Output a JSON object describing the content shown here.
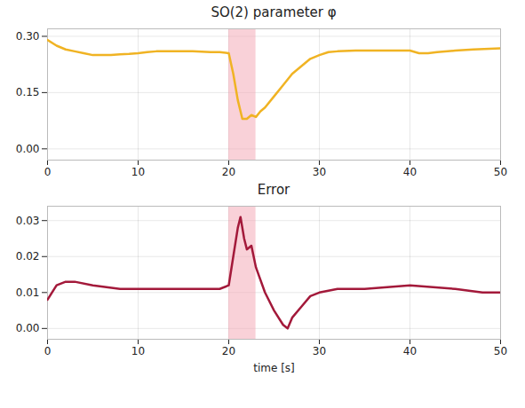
{
  "chart_data": [
    {
      "type": "line",
      "title": "SO(2) parameter φ",
      "x": [
        0,
        1,
        2,
        3,
        4,
        5,
        6,
        7,
        8,
        9,
        10,
        11,
        12,
        13,
        14,
        15,
        16,
        17,
        18,
        19,
        20,
        20.5,
        21,
        21.5,
        22,
        22.5,
        23,
        23.5,
        24,
        25,
        26,
        27,
        28,
        29,
        30,
        31,
        32,
        34,
        36,
        38,
        40,
        41,
        42,
        43,
        45,
        47,
        50
      ],
      "series": [
        {
          "color": "#f0b323",
          "values": [
            0.29,
            0.275,
            0.265,
            0.26,
            0.255,
            0.25,
            0.25,
            0.25,
            0.252,
            0.253,
            0.255,
            0.258,
            0.26,
            0.26,
            0.26,
            0.26,
            0.26,
            0.259,
            0.258,
            0.258,
            0.255,
            0.2,
            0.13,
            0.08,
            0.08,
            0.09,
            0.085,
            0.1,
            0.11,
            0.14,
            0.17,
            0.2,
            0.22,
            0.24,
            0.25,
            0.258,
            0.26,
            0.262,
            0.262,
            0.262,
            0.262,
            0.255,
            0.255,
            0.258,
            0.262,
            0.265,
            0.268
          ]
        }
      ],
      "xlim": [
        0,
        50
      ],
      "xticks": [
        0,
        10,
        20,
        30,
        40,
        50
      ],
      "ylim": [
        -0.03,
        0.32
      ],
      "yticks": [
        {
          "value": 0,
          "label": "0.00"
        },
        {
          "value": 0.15,
          "label": "0.15"
        },
        {
          "value": 0.3,
          "label": "0.30"
        }
      ],
      "grid": true,
      "highlight_span": [
        20,
        23
      ]
    },
    {
      "type": "line",
      "title": "Error",
      "xlabel": "time [s]",
      "x": [
        0,
        1,
        2,
        3,
        5,
        8,
        10,
        15,
        19,
        20,
        20.5,
        21,
        21.3,
        21.7,
        22,
        22.5,
        23,
        24,
        25,
        26,
        26.5,
        27,
        28,
        29,
        30,
        32,
        35,
        40,
        45,
        48,
        50
      ],
      "series": [
        {
          "color": "#a3193a",
          "values": [
            0.008,
            0.012,
            0.013,
            0.013,
            0.012,
            0.011,
            0.011,
            0.011,
            0.011,
            0.012,
            0.02,
            0.028,
            0.031,
            0.025,
            0.022,
            0.023,
            0.017,
            0.01,
            0.005,
            0.001,
            0.0,
            0.003,
            0.006,
            0.009,
            0.01,
            0.011,
            0.011,
            0.012,
            0.011,
            0.01,
            0.01
          ]
        }
      ],
      "xlim": [
        0,
        50
      ],
      "xticks": [
        0,
        10,
        20,
        30,
        40,
        50
      ],
      "ylim": [
        -0.003,
        0.034
      ],
      "yticks": [
        {
          "value": 0,
          "label": "0.00"
        },
        {
          "value": 0.01,
          "label": "0.01"
        },
        {
          "value": 0.02,
          "label": "0.02"
        },
        {
          "value": 0.03,
          "label": "0.03"
        }
      ],
      "grid": true,
      "highlight_span": [
        20,
        23
      ]
    }
  ]
}
